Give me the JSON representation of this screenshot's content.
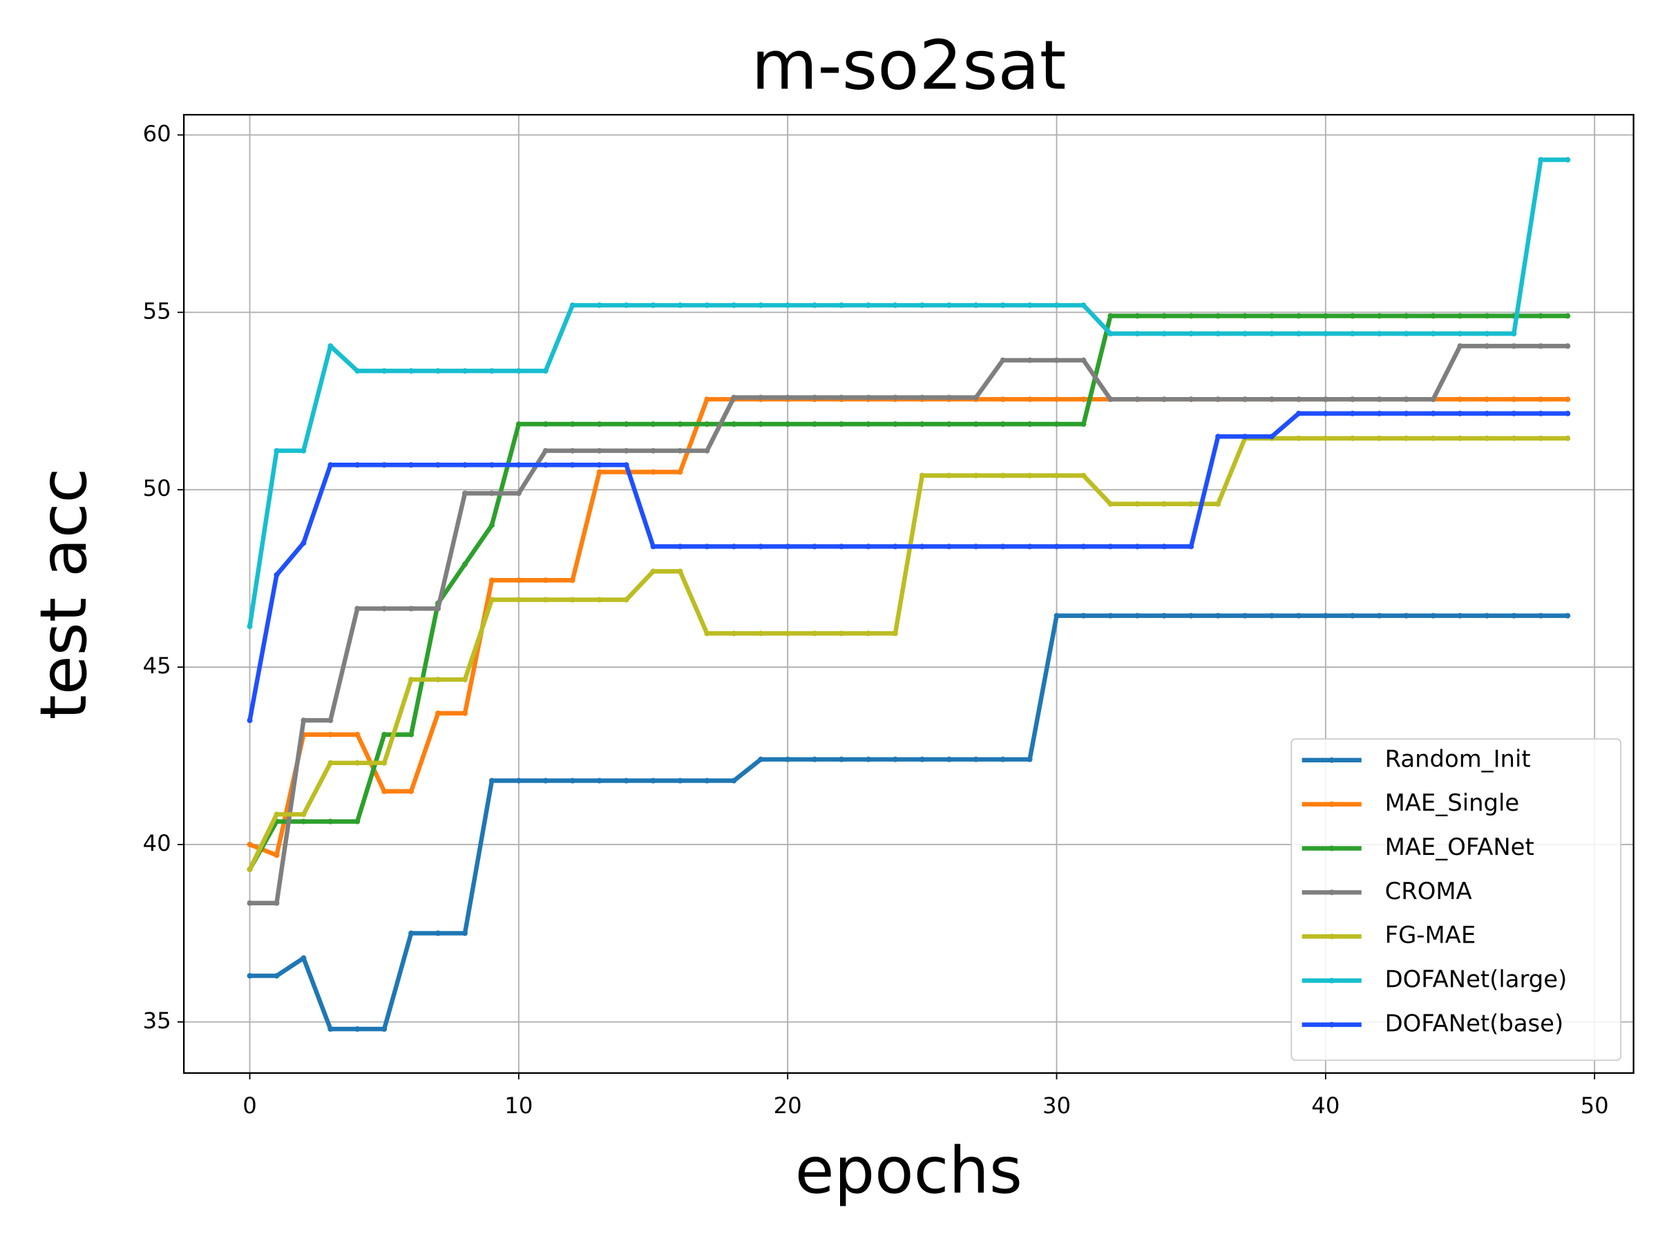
{
  "chart_data": {
    "type": "line",
    "title": "m-so2sat",
    "x_label": "epochs",
    "y_label": "test acc",
    "x": [
      0,
      1,
      2,
      3,
      4,
      5,
      6,
      7,
      8,
      9,
      10,
      11,
      12,
      13,
      14,
      15,
      16,
      17,
      18,
      19,
      20,
      21,
      22,
      23,
      24,
      25,
      26,
      27,
      28,
      29,
      30,
      31,
      32,
      33,
      34,
      35,
      36,
      37,
      38,
      39,
      40,
      41,
      42,
      43,
      44,
      45,
      46,
      47,
      48,
      49
    ],
    "xlim": [
      -2.45,
      51.45
    ],
    "xticks": [
      0,
      10,
      20,
      30,
      40,
      50
    ],
    "ylim": [
      33.56,
      60.57
    ],
    "yticks": [
      35,
      40,
      45,
      50,
      55,
      60
    ],
    "grid": true,
    "legend": "lower right",
    "series": [
      {
        "name": "Random_Init",
        "color": "#1f77b4",
        "values": [
          36.3,
          36.3,
          36.8,
          34.8,
          34.8,
          34.8,
          37.5,
          37.5,
          37.5,
          41.8,
          41.8,
          41.8,
          41.8,
          41.8,
          41.8,
          41.8,
          41.8,
          41.8,
          41.8,
          42.4,
          42.4,
          42.4,
          42.4,
          42.4,
          42.4,
          42.4,
          42.4,
          42.4,
          42.4,
          42.4,
          46.45,
          46.45,
          46.45,
          46.45,
          46.45,
          46.45,
          46.45,
          46.45,
          46.45,
          46.45,
          46.45,
          46.45,
          46.45,
          46.45,
          46.45,
          46.45,
          46.45,
          46.45,
          46.45,
          46.45
        ]
      },
      {
        "name": "MAE_Single",
        "color": "#ff7f0e",
        "values": [
          40.0,
          39.7,
          43.1,
          43.1,
          43.1,
          41.5,
          41.5,
          43.7,
          43.7,
          47.45,
          47.45,
          47.45,
          47.45,
          50.5,
          50.5,
          50.5,
          50.5,
          52.55,
          52.55,
          52.55,
          52.55,
          52.55,
          52.55,
          52.55,
          52.55,
          52.55,
          52.55,
          52.55,
          52.55,
          52.55,
          52.55,
          52.55,
          52.55,
          52.55,
          52.55,
          52.55,
          52.55,
          52.55,
          52.55,
          52.55,
          52.55,
          52.55,
          52.55,
          52.55,
          52.55,
          52.55,
          52.55,
          52.55,
          52.55,
          52.55
        ]
      },
      {
        "name": "MAE_OFANet",
        "color": "#2ca02c",
        "values": [
          39.3,
          40.65,
          40.65,
          40.65,
          40.65,
          43.1,
          43.1,
          46.8,
          47.9,
          49.0,
          51.85,
          51.85,
          51.85,
          51.85,
          51.85,
          51.85,
          51.85,
          51.85,
          51.85,
          51.85,
          51.85,
          51.85,
          51.85,
          51.85,
          51.85,
          51.85,
          51.85,
          51.85,
          51.85,
          51.85,
          51.85,
          51.85,
          54.9,
          54.9,
          54.9,
          54.9,
          54.9,
          54.9,
          54.9,
          54.9,
          54.9,
          54.9,
          54.9,
          54.9,
          54.9,
          54.9,
          54.9,
          54.9,
          54.9,
          54.9
        ]
      },
      {
        "name": "CROMA",
        "color": "#7f7f7f",
        "values": [
          38.35,
          38.35,
          43.5,
          43.5,
          46.65,
          46.65,
          46.65,
          46.65,
          49.9,
          49.9,
          49.9,
          51.1,
          51.1,
          51.1,
          51.1,
          51.1,
          51.1,
          51.1,
          52.6,
          52.6,
          52.6,
          52.6,
          52.6,
          52.6,
          52.6,
          52.6,
          52.6,
          52.6,
          53.65,
          53.65,
          53.65,
          53.65,
          52.55,
          52.55,
          52.55,
          52.55,
          52.55,
          52.55,
          52.55,
          52.55,
          52.55,
          52.55,
          52.55,
          52.55,
          52.55,
          54.05,
          54.05,
          54.05,
          54.05,
          54.05
        ]
      },
      {
        "name": "FG-MAE",
        "color": "#bcbd22",
        "values": [
          39.3,
          40.85,
          40.85,
          42.3,
          42.3,
          42.3,
          44.65,
          44.65,
          44.65,
          46.9,
          46.9,
          46.9,
          46.9,
          46.9,
          46.9,
          47.7,
          47.7,
          45.95,
          45.95,
          45.95,
          45.95,
          45.95,
          45.95,
          45.95,
          45.95,
          50.4,
          50.4,
          50.4,
          50.4,
          50.4,
          50.4,
          50.4,
          49.6,
          49.6,
          49.6,
          49.6,
          49.6,
          51.45,
          51.45,
          51.45,
          51.45,
          51.45,
          51.45,
          51.45,
          51.45,
          51.45,
          51.45,
          51.45,
          51.45,
          51.45
        ]
      },
      {
        "name": "DOFANet(large)",
        "color": "#17becf",
        "values": [
          46.15,
          51.1,
          51.1,
          54.05,
          53.35,
          53.35,
          53.35,
          53.35,
          53.35,
          53.35,
          53.35,
          53.35,
          55.2,
          55.2,
          55.2,
          55.2,
          55.2,
          55.2,
          55.2,
          55.2,
          55.2,
          55.2,
          55.2,
          55.2,
          55.2,
          55.2,
          55.2,
          55.2,
          55.2,
          55.2,
          55.2,
          55.2,
          54.4,
          54.4,
          54.4,
          54.4,
          54.4,
          54.4,
          54.4,
          54.4,
          54.4,
          54.4,
          54.4,
          54.4,
          54.4,
          54.4,
          54.4,
          54.4,
          59.3,
          59.3
        ]
      },
      {
        "name": "DOFANet(base)",
        "color": "#1f4fff",
        "values": [
          43.5,
          47.6,
          48.5,
          50.7,
          50.7,
          50.7,
          50.7,
          50.7,
          50.7,
          50.7,
          50.7,
          50.7,
          50.7,
          50.7,
          50.7,
          48.4,
          48.4,
          48.4,
          48.4,
          48.4,
          48.4,
          48.4,
          48.4,
          48.4,
          48.4,
          48.4,
          48.4,
          48.4,
          48.4,
          48.4,
          48.4,
          48.4,
          48.4,
          48.4,
          48.4,
          48.4,
          51.5,
          51.5,
          51.5,
          52.15,
          52.15,
          52.15,
          52.15,
          52.15,
          52.15,
          52.15,
          52.15,
          52.15,
          52.15,
          52.15
        ]
      }
    ]
  }
}
